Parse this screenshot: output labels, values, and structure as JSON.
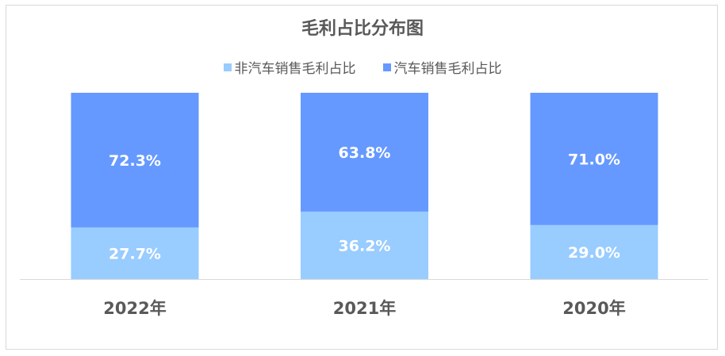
{
  "chart_data": {
    "type": "bar",
    "stacked": true,
    "title": "毛利占比分布图",
    "categories": [
      "2022年",
      "2021年",
      "2020年"
    ],
    "series": [
      {
        "name": "非汽车销售毛利占比",
        "values": [
          27.7,
          36.2,
          29.0
        ],
        "labels": [
          "27.7%",
          "36.2%",
          "29.0%"
        ],
        "color": "#99CCFF"
      },
      {
        "name": "汽车销售毛利占比",
        "values": [
          72.3,
          63.8,
          71.0
        ],
        "labels": [
          "72.3%",
          "63.8%",
          "71.0%"
        ],
        "color": "#6699FF"
      }
    ],
    "ylim": [
      0,
      100
    ],
    "legend": "top",
    "grid": false
  }
}
